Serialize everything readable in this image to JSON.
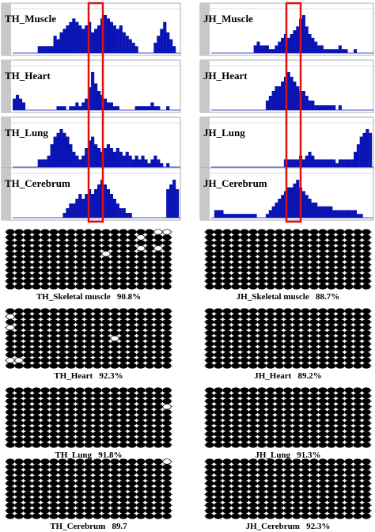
{
  "colors": {
    "bar": "#0a14b4",
    "highlight_box": "#e01010",
    "methylated": "#000000",
    "unmethylated": "#ffffff",
    "track_bg": "#ffffff",
    "track_gutter": "#c8c8c8"
  },
  "icons": {
    "methylated_site": "filled-ellipse",
    "unmethylated_site": "open-ellipse"
  },
  "tracks": {
    "left": [
      {
        "label": "TH_Muscle",
        "values": [
          0,
          0,
          0,
          0,
          0,
          0,
          0,
          0,
          2,
          2,
          2,
          2,
          2,
          5,
          4,
          6,
          7,
          8,
          9,
          10,
          9,
          8,
          7,
          8,
          9,
          6,
          7,
          8,
          10,
          11,
          10,
          9,
          8,
          7,
          8,
          6,
          5,
          4,
          3,
          2,
          0,
          0,
          0,
          0,
          0,
          3,
          5,
          7,
          9,
          6,
          4,
          2,
          0
        ]
      },
      {
        "label": "TH_Heart",
        "values": [
          3,
          4,
          3,
          2,
          0,
          0,
          0,
          0,
          0,
          0,
          0,
          0,
          0,
          0,
          1,
          1,
          1,
          0,
          1,
          1,
          2,
          1,
          2,
          3,
          6,
          10,
          7,
          5,
          4,
          3,
          2,
          2,
          1,
          1,
          0,
          0,
          0,
          0,
          0,
          1,
          1,
          1,
          1,
          1,
          2,
          1,
          1,
          0,
          0,
          1,
          0,
          0,
          0
        ]
      },
      {
        "label": "TH_Lung",
        "values": [
          0,
          0,
          0,
          0,
          0,
          0,
          0,
          0,
          2,
          2,
          2,
          3,
          6,
          8,
          9,
          10,
          9,
          8,
          6,
          4,
          3,
          2,
          3,
          5,
          7,
          8,
          6,
          5,
          4,
          5,
          6,
          5,
          4,
          5,
          4,
          3,
          4,
          3,
          2,
          3,
          2,
          3,
          2,
          1,
          2,
          3,
          2,
          1,
          0,
          1,
          0,
          0,
          0
        ]
      },
      {
        "label": "TH_Cerebrum",
        "values": [
          0,
          0,
          0,
          0,
          0,
          0,
          0,
          0,
          0,
          0,
          0,
          0,
          0,
          0,
          0,
          0,
          1,
          2,
          3,
          3,
          4,
          5,
          4,
          5,
          6,
          5,
          6,
          7,
          8,
          7,
          6,
          5,
          4,
          3,
          2,
          2,
          1,
          1,
          0,
          0,
          0,
          0,
          0,
          0,
          0,
          0,
          0,
          0,
          0,
          6,
          7,
          8,
          6
        ]
      }
    ],
    "right": [
      {
        "label": "JH_Muscle",
        "values": [
          0,
          0,
          0,
          0,
          0,
          0,
          0,
          0,
          0,
          0,
          0,
          0,
          0,
          0,
          2,
          3,
          2,
          2,
          2,
          1,
          1,
          2,
          3,
          4,
          5,
          4,
          5,
          6,
          7,
          9,
          10,
          7,
          5,
          4,
          3,
          2,
          2,
          1,
          1,
          1,
          1,
          1,
          2,
          1,
          1,
          0,
          0,
          1,
          0,
          0,
          0,
          0,
          0
        ]
      },
      {
        "label": "JH_Heart",
        "values": [
          0,
          0,
          0,
          0,
          0,
          0,
          0,
          0,
          0,
          0,
          0,
          0,
          0,
          0,
          0,
          0,
          0,
          0,
          2,
          3,
          4,
          5,
          5,
          6,
          7,
          8,
          7,
          6,
          5,
          4,
          4,
          3,
          2,
          2,
          1,
          1,
          1,
          1,
          1,
          1,
          1,
          0,
          1,
          0,
          0,
          0,
          0,
          0,
          0,
          0,
          0,
          0,
          0
        ]
      },
      {
        "label": "JH_Lung",
        "values": [
          0,
          0,
          0,
          0,
          0,
          0,
          0,
          0,
          0,
          0,
          0,
          0,
          0,
          0,
          0,
          0,
          0,
          0,
          0,
          0,
          0,
          0,
          0,
          0,
          2,
          2,
          2,
          2,
          2,
          3,
          2,
          3,
          4,
          3,
          2,
          2,
          2,
          2,
          2,
          2,
          2,
          1,
          2,
          2,
          2,
          2,
          2,
          4,
          6,
          8,
          9,
          10,
          9
        ]
      },
      {
        "label": "JH_Cerebrum",
        "values": [
          0,
          2,
          2,
          2,
          1,
          1,
          1,
          1,
          1,
          1,
          1,
          1,
          1,
          1,
          1,
          0,
          0,
          0,
          1,
          2,
          3,
          4,
          5,
          6,
          7,
          8,
          8,
          9,
          10,
          8,
          7,
          6,
          5,
          4,
          4,
          3,
          3,
          3,
          3,
          3,
          2,
          2,
          2,
          2,
          2,
          2,
          2,
          2,
          1,
          1,
          0,
          0,
          0
        ]
      }
    ]
  },
  "methylation": {
    "left": [
      {
        "caption": "TH_Skeletal muscle   90.8%",
        "rows": [
          "0000000000000000011",
          "0000000000000001000",
          "0000000000000000000",
          "0000000000000001010",
          "0000000000010000000",
          "0000000000000000000",
          "0000000000000000000",
          "0000000000000000000",
          "0000000000000000000",
          "0000000000000000000",
          "0000000000000000000"
        ]
      },
      {
        "caption": "TH_Heart   92.3%",
        "rows": [
          "0000000000000000000",
          "1000000000000000000",
          "0000000000000000000",
          "1000000000000000000",
          "0000000000000000000",
          "0000000000001000000",
          "0000000000000000000",
          "0000000000000000000",
          "0000000000000000000",
          "1100000000000000000",
          "0000000000000000000"
        ]
      },
      {
        "caption": "TH_Lung   91.8%",
        "rows": [
          "0000000000000000000",
          "0000000000000000000",
          "0000000000000000000",
          "0000000000000000001",
          "0000000000000000000",
          "0000000000000000000",
          "0000000000000000000",
          "0000000000000000000",
          "0000000000000000000",
          "0000000000000000000",
          "0000000000000000000"
        ]
      },
      {
        "caption": "TH_Cerebrum   89.7",
        "rows": [
          "0000000000000000001",
          "0000000000000000000",
          "0000000000000000000",
          "0000000000000000000",
          "0000000000000000000",
          "0000000000000000000",
          "0000000000000000000",
          "0000000000000000000",
          "0000000000000000000",
          "0000000000000000000",
          "0000000000000000000"
        ]
      }
    ],
    "right": [
      {
        "caption": "JH_Skeletal muscle   88.7%",
        "rows": [
          "0000000000000000000",
          "0000000000000000000",
          "0000000000000000000",
          "0000000000000000000",
          "0000000000000000000",
          "0000000000000000000",
          "0000000000000000000",
          "0000000000000000000",
          "0000000000000000000",
          "0000000000000000000",
          "0000000000000000000"
        ]
      },
      {
        "caption": "JH_Heart   89.2%",
        "rows": [
          "0000000000000000000",
          "0000000000000000000",
          "0000000000000000000",
          "0000000000000000000",
          "0000000000000000000",
          "0000000000000000000",
          "0000000000000000000",
          "0000000000000000000",
          "0000000000000000000",
          "0000000000000000000",
          "0000000000000000000"
        ]
      },
      {
        "caption": "JH_Lung   91.3%",
        "rows": [
          "0000000000000000000",
          "0000000000000000000",
          "0000000000000000000",
          "0000000000000000000",
          "0000000000000000000",
          "0000000000000000000",
          "0000000000000000000",
          "0000000000000000000",
          "0000000000000000000",
          "0000000000000000000",
          "0000000000000000000"
        ]
      },
      {
        "caption": "JH_Cerebrum   92.3%",
        "rows": [
          "0000000000000000000",
          "0000000000000000000",
          "0000000000000000000",
          "0000000000000000000",
          "0000000000000000000",
          "0000000000000000000",
          "0000000000000000000",
          "0000000000000000000",
          "0000000000000000000",
          "0000000000000000000",
          "0000000000000000000"
        ]
      }
    ]
  }
}
